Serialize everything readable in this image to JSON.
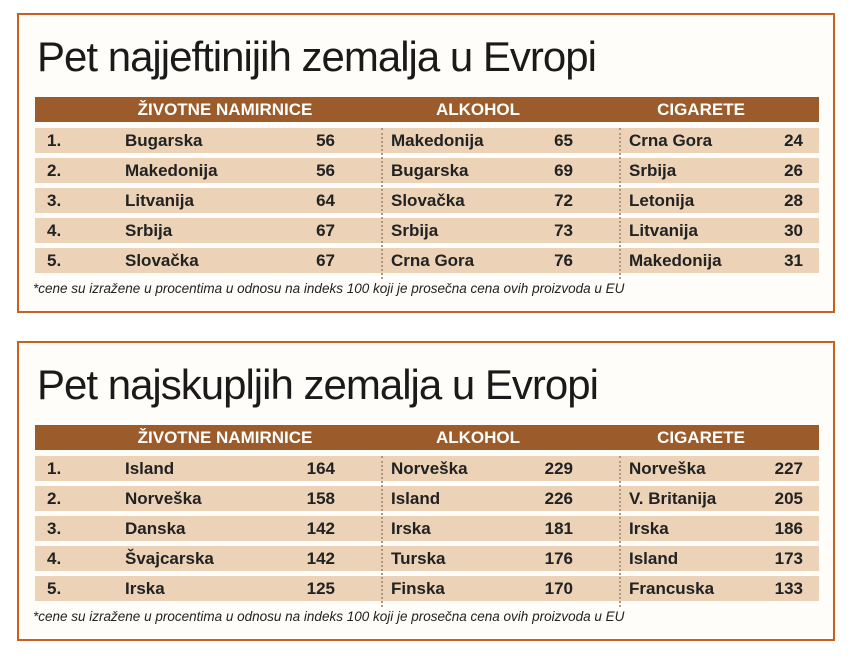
{
  "tables": [
    {
      "title": "Pet najjeftinijih zemalja u Evropi",
      "headers": [
        "ŽIVOTNE NAMIRNICE",
        "ALKOHOL",
        "CIGARETE"
      ],
      "rows": [
        {
          "rank": "1.",
          "food": "Bugarska",
          "food_val": "56",
          "alcohol": "Makedonija",
          "alcohol_val": "65",
          "cig": "Crna Gora",
          "cig_val": "24"
        },
        {
          "rank": "2.",
          "food": "Makedonija",
          "food_val": "56",
          "alcohol": "Bugarska",
          "alcohol_val": "69",
          "cig": "Srbija",
          "cig_val": "26"
        },
        {
          "rank": "3.",
          "food": "Litvanija",
          "food_val": "64",
          "alcohol": "Slovačka",
          "alcohol_val": "72",
          "cig": "Letonija",
          "cig_val": "28"
        },
        {
          "rank": "4.",
          "food": "Srbija",
          "food_val": "67",
          "alcohol": "Srbija",
          "alcohol_val": "73",
          "cig": "Litvanija",
          "cig_val": "30"
        },
        {
          "rank": "5.",
          "food": "Slovačka",
          "food_val": "67",
          "alcohol": "Crna Gora",
          "alcohol_val": "76",
          "cig": "Makedonija",
          "cig_val": "31"
        }
      ],
      "footnote": "*cene su izražene u procentima u odnosu na indeks 100 koji je prosečna cena ovih proizvoda u EU"
    },
    {
      "title": "Pet najskupljih zemalja u Evropi",
      "headers": [
        "ŽIVOTNE NAMIRNICE",
        "ALKOHOL",
        "CIGARETE"
      ],
      "rows": [
        {
          "rank": "1.",
          "food": "Island",
          "food_val": "164",
          "alcohol": "Norveška",
          "alcohol_val": "229",
          "cig": "Norveška",
          "cig_val": "227"
        },
        {
          "rank": "2.",
          "food": "Norveška",
          "food_val": "158",
          "alcohol": "Island",
          "alcohol_val": "226",
          "cig": "V. Britanija",
          "cig_val": "205"
        },
        {
          "rank": "3.",
          "food": "Danska",
          "food_val": "142",
          "alcohol": "Irska",
          "alcohol_val": "181",
          "cig": "Irska",
          "cig_val": "186"
        },
        {
          "rank": "4.",
          "food": "Švajcarska",
          "food_val": "142",
          "alcohol": "Turska",
          "alcohol_val": "176",
          "cig": "Island",
          "cig_val": "173"
        },
        {
          "rank": "5.",
          "food": "Irska",
          "food_val": "125",
          "alcohol": "Finska",
          "alcohol_val": "170",
          "cig": "Francuska",
          "cig_val": "133"
        }
      ],
      "footnote": "*cene su izražene u procentima u odnosu na indeks 100 koji je prosečna cena ovih proizvoda u EU"
    }
  ],
  "colors": {
    "border": "#c6621e",
    "header_bg": "#9b5b2a",
    "row_bg": "#ecd3b8"
  }
}
